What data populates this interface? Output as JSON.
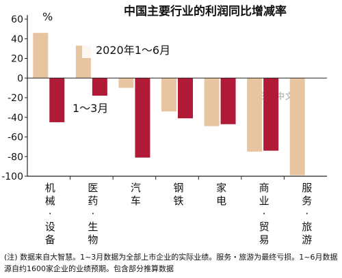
{
  "chart_data": {
    "type": "bar",
    "title": "中国主要行业的利润同比增减率",
    "unit": "%",
    "ylim": [
      -100,
      60
    ],
    "yticks": [
      60,
      40,
      20,
      0,
      -20,
      -40,
      -60,
      -80,
      -100
    ],
    "ytick_labels": [
      "60",
      "40",
      "20",
      "0",
      "-20",
      "-40",
      "-60",
      "-80",
      "-100"
    ],
    "grid": false,
    "categories": [
      [
        "机",
        "械",
        "·",
        "设",
        "备"
      ],
      [
        "医",
        "药",
        "·",
        "生",
        "物"
      ],
      [
        "汽",
        "车"
      ],
      [
        "钢",
        "铁"
      ],
      [
        "家",
        "电"
      ],
      [
        "商",
        "业",
        "·",
        "贸",
        "易"
      ],
      [
        "服",
        "务",
        "·",
        "旅",
        "游"
      ]
    ],
    "series": [
      {
        "name": "2020年1～6月",
        "color": "#e8c5a1",
        "values": [
          46,
          33,
          -10,
          -34,
          -49,
          -75,
          -99
        ]
      },
      {
        "name": "1～3月",
        "color": "#b01a37",
        "values": [
          -45,
          -18,
          -81,
          -41,
          -47,
          -74,
          null
        ]
      }
    ],
    "watermark": "日经中文网",
    "note": "(注) 数据来自大智慧。1~3月数据为全部上市企业的实际业绩。服务・旅游为最终亏损。1~6月数据源自约1600家企业的业绩预期。包含部分推算数据"
  }
}
